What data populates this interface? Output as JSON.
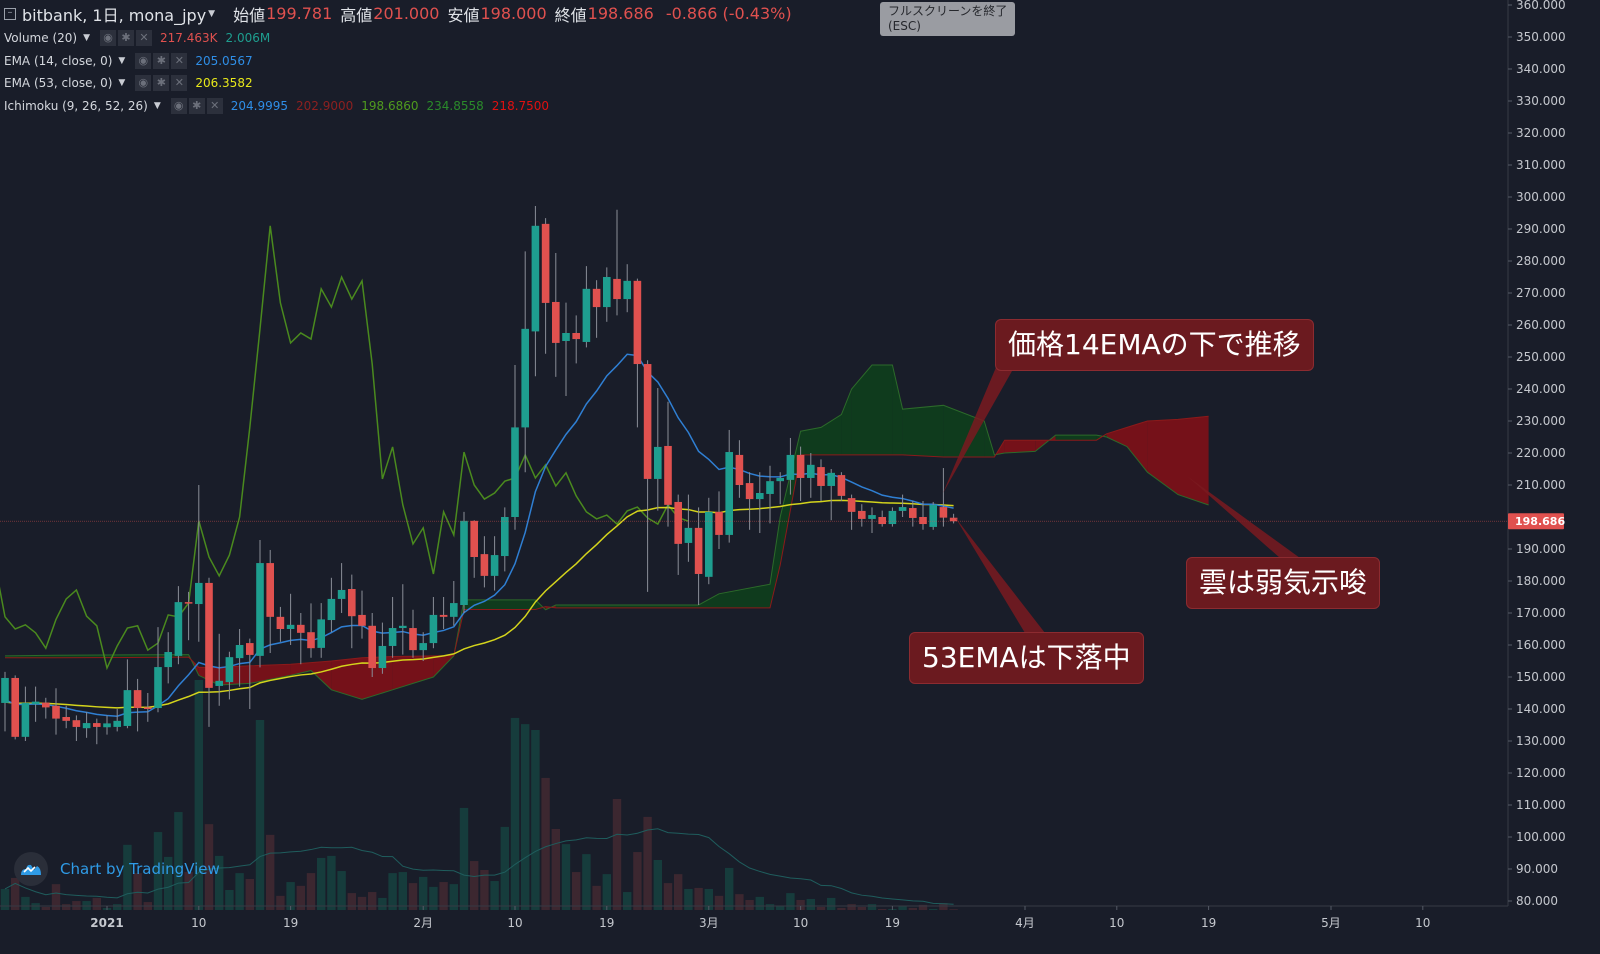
{
  "header": {
    "symbol": "bitbank, 1日, mona_jpy",
    "open_label": "始値",
    "open": "199.781",
    "high_label": "高値",
    "high": "201.000",
    "low_label": "安値",
    "low": "198.000",
    "close_label": "終値",
    "close": "198.686",
    "change": "-0.866 (-0.43%)"
  },
  "tooltip": {
    "line1": "フルスクリーンを終了",
    "line2": "(ESC)"
  },
  "indicators": [
    {
      "name": "Volume (20)",
      "values": [
        {
          "v": "217.463K",
          "color": "#e0514f"
        },
        {
          "v": "2.006M",
          "color": "#1e9e8f"
        }
      ]
    },
    {
      "name": "EMA (14, close, 0)",
      "values": [
        {
          "v": "205.0567",
          "color": "#2f8ee6"
        }
      ]
    },
    {
      "name": "EMA (53, close, 0)",
      "values": [
        {
          "v": "206.3582",
          "color": "#e8e81a"
        }
      ]
    },
    {
      "name": "Ichimoku (9, 26, 52, 26)",
      "values": [
        {
          "v": "204.9995",
          "color": "#2f8ee6"
        },
        {
          "v": "202.9000",
          "color": "#8c2020"
        },
        {
          "v": "198.6860",
          "color": "#4f9a1e"
        },
        {
          "v": "234.8558",
          "color": "#2a8a2a"
        },
        {
          "v": "218.7500",
          "color": "#e01010"
        }
      ]
    }
  ],
  "icons": {
    "eye": "eye-icon",
    "gear": "gear-icon",
    "close": "close-icon"
  },
  "annotations": [
    {
      "text": "価格14EMAの下で推移"
    },
    {
      "text": "雲は弱気示唆"
    },
    {
      "text": "53EMAは下落中"
    }
  ],
  "branding": "Chart by TradingView",
  "colors": {
    "background": "#191d29",
    "up": "#1e9e8f",
    "down": "#e0514f",
    "ema14": "#2f7fd3",
    "ema53": "#d4d41c",
    "chikou": "#4a8a1e",
    "cloud_up": "#0f3d1c",
    "cloud_down": "#7a1118",
    "price_line": "#e0514f"
  },
  "chart_data": {
    "type": "candlestick",
    "symbol": "mona_jpy",
    "interval": "1日",
    "y_axis": {
      "range": [
        80,
        360
      ],
      "ticks": [
        "360.000",
        "350.000",
        "340.000",
        "330.000",
        "320.000",
        "310.000",
        "300.000",
        "290.000",
        "280.000",
        "270.000",
        "260.000",
        "250.000",
        "240.000",
        "230.000",
        "220.000",
        "210.000",
        "190.000",
        "180.000",
        "170.000",
        "160.000",
        "150.000",
        "140.000",
        "130.000",
        "120.000",
        "110.000",
        "100.000",
        "90.000",
        "80.000"
      ],
      "last_price_label": "198.686",
      "last_price": 198.686
    },
    "x_axis": {
      "ticks": [
        {
          "date": "2021-01-01",
          "label": "2021"
        },
        {
          "date": "2021-01-10",
          "label": "10"
        },
        {
          "date": "2021-01-19",
          "label": "19"
        },
        {
          "date": "2021-02-01",
          "label": "2月"
        },
        {
          "date": "2021-02-10",
          "label": "10"
        },
        {
          "date": "2021-02-19",
          "label": "19"
        },
        {
          "date": "2021-03-01",
          "label": "3月"
        },
        {
          "date": "2021-03-10",
          "label": "10"
        },
        {
          "date": "2021-03-19",
          "label": "19"
        },
        {
          "date": "2021-04-01",
          "label": "4月"
        },
        {
          "date": "2021-04-10",
          "label": "10"
        },
        {
          "date": "2021-04-19",
          "label": "19"
        },
        {
          "date": "2021-05-01",
          "label": "5月"
        },
        {
          "date": "2021-05-10",
          "label": "10"
        }
      ]
    },
    "candle_columns": [
      "date",
      "open",
      "high",
      "low",
      "close",
      "volume_M"
    ],
    "candles": [
      [
        "2020-12-22",
        141.9,
        151.6,
        133,
        149.7,
        6.1
      ],
      [
        "2020-12-23",
        149.7,
        150.5,
        130.5,
        131.3,
        9.3
      ],
      [
        "2020-12-24",
        131.3,
        147,
        130,
        141.9,
        3.8
      ],
      [
        "2020-12-25",
        141.5,
        147,
        136,
        142.3,
        2.0
      ],
      [
        "2020-12-26",
        142,
        143.5,
        137,
        140.5,
        0.9
      ],
      [
        "2020-12-27",
        141,
        146.5,
        132,
        137,
        7.5
      ],
      [
        "2020-12-28",
        137.5,
        141,
        134,
        136.3,
        1.7
      ],
      [
        "2020-12-29",
        136.5,
        138,
        130,
        134.4,
        2.6
      ],
      [
        "2020-12-30",
        134,
        139,
        131,
        135.6,
        2.6
      ],
      [
        "2020-12-31",
        135.6,
        137,
        129,
        134.4,
        3.5
      ],
      [
        "2021-01-01",
        134.3,
        138,
        132,
        135.5,
        0.6
      ],
      [
        "2021-01-02",
        134.4,
        140,
        133,
        136.3,
        1.7
      ],
      [
        "2021-01-03",
        134.7,
        155.5,
        134,
        145.9,
        18.9
      ],
      [
        "2021-01-04",
        145.9,
        149.4,
        133,
        140.3,
        10.7
      ],
      [
        "2021-01-05",
        140.5,
        145,
        136,
        140,
        2.3
      ],
      [
        "2021-01-06",
        140.3,
        165.6,
        139,
        153.1,
        22.6
      ],
      [
        "2021-01-07",
        153.1,
        164,
        148,
        157.8,
        15.4
      ],
      [
        "2021-01-08",
        156.6,
        178.4,
        154,
        173.4,
        28.4
      ],
      [
        "2021-01-09",
        173.4,
        176.6,
        161.5,
        173.1,
        11.0
      ],
      [
        "2021-01-10",
        172.8,
        210,
        161,
        179.4,
        66.7
      ],
      [
        "2021-01-11",
        179.4,
        181,
        134.4,
        146.6,
        24.9
      ],
      [
        "2021-01-12",
        147.2,
        163.5,
        141,
        148.8,
        15.7
      ],
      [
        "2021-01-13",
        148.4,
        157.9,
        143,
        156.2,
        5.8
      ],
      [
        "2021-01-14",
        155.9,
        165,
        147,
        160,
        10.7
      ],
      [
        "2021-01-15",
        160.6,
        162,
        140,
        156.9,
        9.0
      ],
      [
        "2021-01-16",
        156.6,
        192.8,
        153,
        185.6,
        55.1
      ],
      [
        "2021-01-17",
        185.6,
        189.7,
        157.5,
        168.8,
        21.8
      ],
      [
        "2021-01-18",
        168.8,
        171.9,
        161,
        165,
        4.1
      ],
      [
        "2021-01-19",
        165,
        176,
        160,
        166.3,
        8.1
      ],
      [
        "2021-01-20",
        166.3,
        170,
        154,
        163.8,
        7.0
      ],
      [
        "2021-01-21",
        164,
        173,
        156,
        159,
        10.7
      ],
      [
        "2021-01-22",
        159.1,
        173.1,
        156,
        168,
        15.1
      ],
      [
        "2021-01-23",
        167.8,
        181,
        164,
        174.4,
        15.7
      ],
      [
        "2021-01-24",
        174.4,
        185.6,
        170,
        177.2,
        11.3
      ],
      [
        "2021-01-25",
        177.5,
        182,
        159,
        169,
        4.9
      ],
      [
        "2021-01-26",
        169.4,
        177,
        162,
        166,
        3.8
      ],
      [
        "2021-01-27",
        166,
        170,
        150,
        152.8,
        5.2
      ],
      [
        "2021-01-28",
        152.8,
        167,
        151,
        159.7,
        3.5
      ],
      [
        "2021-01-29",
        159.7,
        175,
        156,
        165.3,
        10.7
      ],
      [
        "2021-01-30",
        165.3,
        179,
        157,
        166,
        11.0
      ],
      [
        "2021-01-31",
        165.3,
        171,
        156,
        158.4,
        7.8
      ],
      [
        "2021-02-01",
        158.4,
        164,
        155,
        160.6,
        9.6
      ],
      [
        "2021-02-02",
        160.6,
        175,
        159,
        169.4,
        6.7
      ],
      [
        "2021-02-03",
        169.4,
        175,
        165,
        168.8,
        8.1
      ],
      [
        "2021-02-04",
        168.8,
        180,
        166,
        173.1,
        7.5
      ],
      [
        "2021-02-05",
        172.5,
        201.6,
        170,
        198.8,
        29.6
      ],
      [
        "2021-02-06",
        198.8,
        199,
        181,
        187.5,
        14.2
      ],
      [
        "2021-02-07",
        188.4,
        194,
        178,
        181.6,
        11.6
      ],
      [
        "2021-02-08",
        181.6,
        194,
        177,
        188.1,
        8.4
      ],
      [
        "2021-02-09",
        187.8,
        203,
        183,
        200,
        24.1
      ],
      [
        "2021-02-10",
        200,
        247.5,
        196,
        228,
        55.7
      ],
      [
        "2021-02-11",
        228,
        283,
        214,
        258.8,
        53.9
      ],
      [
        "2021-02-12",
        258,
        297.2,
        244,
        291,
        52.2
      ],
      [
        "2021-02-13",
        291.6,
        293.4,
        251,
        266.9,
        38.3
      ],
      [
        "2021-02-14",
        267.2,
        282.5,
        243.8,
        254.4,
        23.5
      ],
      [
        "2021-02-15",
        255,
        267,
        237.8,
        257.5,
        19.1
      ],
      [
        "2021-02-16",
        257.5,
        263,
        248,
        255.6,
        11.0
      ],
      [
        "2021-02-17",
        254.7,
        278.4,
        253,
        271.3,
        16.2
      ],
      [
        "2021-02-18",
        271.3,
        274,
        256,
        265.6,
        7.0
      ],
      [
        "2021-02-19",
        265.6,
        278,
        261,
        275,
        10.4
      ],
      [
        "2021-02-20",
        274.4,
        296,
        263,
        268.1,
        32.2
      ],
      [
        "2021-02-21",
        268.1,
        279,
        264,
        273.8,
        5.2
      ],
      [
        "2021-02-22",
        273.8,
        274.5,
        228,
        247.8,
        16.8
      ],
      [
        "2021-02-23",
        247.8,
        249,
        176.6,
        211.9,
        27.0
      ],
      [
        "2021-02-24",
        211.9,
        240.3,
        202,
        221.9,
        14.5
      ],
      [
        "2021-02-25",
        222.2,
        236,
        197,
        203.8,
        7.8
      ],
      [
        "2021-02-26",
        204.7,
        207,
        181.9,
        191.6,
        10.4
      ],
      [
        "2021-02-27",
        191.9,
        207,
        186,
        196.6,
        6.1
      ],
      [
        "2021-02-28",
        196.6,
        203,
        172.5,
        182.2,
        6.4
      ],
      [
        "2021-03-01",
        181.3,
        206,
        179,
        201.6,
        6.1
      ],
      [
        "2021-03-02",
        201.6,
        208,
        190,
        194.4,
        4.1
      ],
      [
        "2021-03-03",
        194.4,
        227.2,
        192,
        220.3,
        12.2
      ],
      [
        "2021-03-04",
        219.4,
        224,
        206,
        210,
        4.6
      ],
      [
        "2021-03-05",
        210.6,
        214,
        196,
        205.6,
        2.9
      ],
      [
        "2021-03-06",
        205.6,
        214,
        195,
        207.5,
        3.8
      ],
      [
        "2021-03-07",
        207.2,
        216,
        198,
        211.2,
        1.7
      ],
      [
        "2021-03-08",
        211.2,
        214,
        204,
        212.2,
        1.2
      ],
      [
        "2021-03-09",
        211.6,
        224.7,
        207,
        219.4,
        4.9
      ],
      [
        "2021-03-10",
        219.4,
        222,
        205,
        212.2,
        2.9
      ],
      [
        "2021-03-11",
        212.2,
        220,
        206,
        216.3,
        3.2
      ],
      [
        "2021-03-12",
        215.6,
        218,
        205,
        209.7,
        0.9
      ],
      [
        "2021-03-13",
        209.7,
        215,
        199,
        213.8,
        3.5
      ],
      [
        "2021-03-14",
        213.1,
        214,
        205,
        206.6,
        0.6
      ],
      [
        "2021-03-15",
        205.9,
        207,
        196,
        201.6,
        1.7
      ],
      [
        "2021-03-16",
        201.9,
        204,
        197,
        199.4,
        0.9
      ],
      [
        "2021-03-17",
        199.4,
        203,
        195,
        200.6,
        1.7
      ],
      [
        "2021-03-18",
        200,
        202,
        197,
        197.8,
        0.3
      ],
      [
        "2021-03-19",
        197.8,
        203,
        197,
        201.9,
        0.3
      ],
      [
        "2021-03-20",
        201.9,
        207,
        200,
        203.1,
        1.2
      ],
      [
        "2021-03-21",
        202.8,
        205,
        197,
        199.7,
        0.6
      ],
      [
        "2021-03-22",
        200,
        205,
        196,
        197.8,
        1.5
      ],
      [
        "2021-03-23",
        196.9,
        204.7,
        196,
        203.8,
        0.3
      ],
      [
        "2021-03-24",
        203.1,
        215.3,
        197,
        199.8,
        2.0
      ],
      [
        "2021-03-25",
        199.781,
        201,
        198,
        198.686,
        0.217
      ]
    ],
    "ema_periods": [
      14,
      53
    ],
    "ichimoku": {
      "chikou_shift": 26,
      "cloud_columns": [
        "date",
        "senkou_a",
        "senkou_b"
      ],
      "cloud": [
        [
          "2020-12-22",
          156.6,
          156.0
        ],
        [
          "2020-12-27",
          156.8,
          156.0
        ],
        [
          "2021-01-09",
          157.0,
          156.2
        ],
        [
          "2021-01-10",
          150.5,
          153.0
        ],
        [
          "2021-01-12",
          147.5,
          153.0
        ],
        [
          "2021-01-15",
          148.0,
          153.5
        ],
        [
          "2021-01-19",
          150.5,
          154.0
        ],
        [
          "2021-01-21",
          152.0,
          154.5
        ],
        [
          "2021-01-23",
          146.0,
          155.0
        ],
        [
          "2021-01-26",
          143.0,
          156.0
        ],
        [
          "2021-01-29",
          146.0,
          156.4
        ],
        [
          "2021-01-31",
          148.0,
          156.5
        ],
        [
          "2021-02-02",
          150.0,
          156.6
        ],
        [
          "2021-02-04",
          156.6,
          156.7
        ],
        [
          "2021-02-05",
          174.1,
          171.1
        ],
        [
          "2021-02-12",
          174.1,
          171.1
        ],
        [
          "2021-02-13",
          171.0,
          172.0
        ],
        [
          "2021-02-14",
          172.5,
          171.6
        ],
        [
          "2021-02-28",
          172.5,
          171.6
        ],
        [
          "2021-03-02",
          176.0,
          171.6
        ],
        [
          "2021-03-07",
          179.0,
          171.6
        ],
        [
          "2021-03-08",
          200.0,
          185.0
        ],
        [
          "2021-03-10",
          226.8,
          219.4
        ],
        [
          "2021-03-12",
          228.0,
          219.4
        ],
        [
          "2021-03-14",
          232.0,
          219.4
        ],
        [
          "2021-03-15",
          240.0,
          219.4
        ],
        [
          "2021-03-17",
          247.5,
          219.4
        ],
        [
          "2021-03-19",
          247.5,
          219.4
        ],
        [
          "2021-03-20",
          233.7,
          219.4
        ],
        [
          "2021-03-24",
          234.9,
          218.75
        ],
        [
          "2021-03-28",
          230.0,
          218.75
        ],
        [
          "2021-03-29",
          219.4,
          218.75
        ],
        [
          "2021-03-30",
          220.0,
          224.0
        ],
        [
          "2021-04-02",
          220.5,
          224.0
        ],
        [
          "2021-04-04",
          225.6,
          224.0
        ],
        [
          "2021-04-08",
          225.6,
          224.0
        ],
        [
          "2021-04-09",
          225.0,
          226.0
        ],
        [
          "2021-04-11",
          222.0,
          228.0
        ],
        [
          "2021-04-13",
          214.0,
          230.0
        ],
        [
          "2021-04-16",
          207.0,
          230.5
        ],
        [
          "2021-04-19",
          203.75,
          231.5
        ]
      ]
    },
    "volume_ma_period": 20,
    "grid": false
  }
}
